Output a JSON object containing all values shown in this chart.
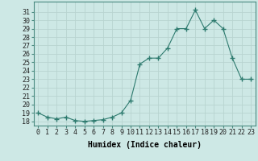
{
  "x": [
    0,
    1,
    2,
    3,
    4,
    5,
    6,
    7,
    8,
    9,
    10,
    11,
    12,
    13,
    14,
    15,
    16,
    17,
    18,
    19,
    20,
    21,
    22,
    23
  ],
  "y": [
    19.0,
    18.5,
    18.3,
    18.5,
    18.1,
    18.0,
    18.1,
    18.2,
    18.5,
    19.0,
    20.5,
    24.8,
    25.5,
    25.5,
    26.7,
    29.0,
    29.0,
    31.2,
    29.0,
    30.0,
    29.0,
    25.5,
    23.0,
    23.0
  ],
  "line_color": "#2d7a6e",
  "marker": "+",
  "marker_size": 5,
  "background_color": "#cde8e5",
  "grid_color": "#b8d4d0",
  "xlabel": "Humidex (Indice chaleur)",
  "xlabel_fontsize": 7,
  "tick_fontsize": 6,
  "ylim": [
    17.5,
    32.2
  ],
  "xlim": [
    -0.5,
    23.5
  ],
  "yticks": [
    18,
    19,
    20,
    21,
    22,
    23,
    24,
    25,
    26,
    27,
    28,
    29,
    30,
    31
  ],
  "xticks": [
    0,
    1,
    2,
    3,
    4,
    5,
    6,
    7,
    8,
    9,
    10,
    11,
    12,
    13,
    14,
    15,
    16,
    17,
    18,
    19,
    20,
    21,
    22,
    23
  ]
}
